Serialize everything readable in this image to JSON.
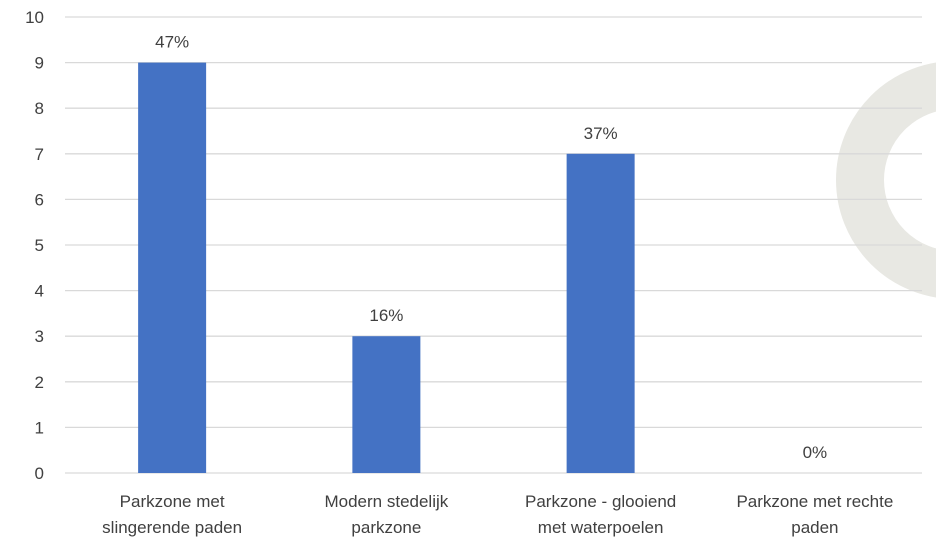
{
  "chart_data": {
    "type": "bar",
    "categories": [
      [
        "Parkzone met",
        "slingerende paden"
      ],
      [
        "Modern stedelijk",
        "parkzone"
      ],
      [
        "Parkzone - glooiend",
        "met waterpoelen"
      ],
      [
        "Parkzone met rechte",
        "paden"
      ]
    ],
    "values": [
      9,
      3,
      7,
      0
    ],
    "data_labels": [
      "47%",
      "16%",
      "37%",
      "0%"
    ],
    "ylim": [
      0,
      10
    ],
    "yticks": [
      "0",
      "1",
      "2",
      "3",
      "4",
      "5",
      "6",
      "7",
      "8",
      "9",
      "10"
    ],
    "title": "",
    "xlabel": "",
    "ylabel": "",
    "grid": true,
    "legend": "none"
  },
  "colors": {
    "bar": "#4472C4",
    "grid": "#D9D9D9",
    "text": "#404040",
    "decor_ring": "#E8E8E3"
  }
}
